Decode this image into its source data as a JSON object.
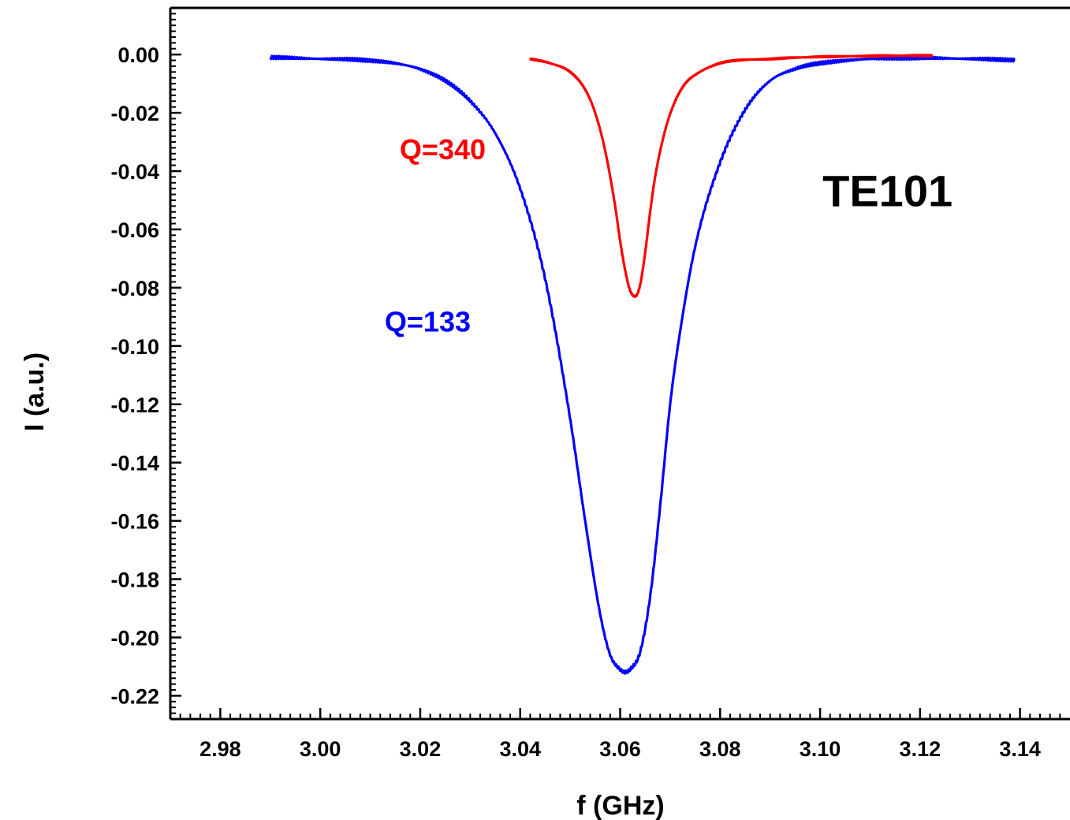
{
  "chart_data": {
    "type": "line",
    "title": "",
    "xlabel": "f (GHz)",
    "ylabel": "I (a.u.)",
    "xlim": [
      2.97,
      3.15
    ],
    "ylim": [
      -0.228,
      0.016
    ],
    "x_ticks": [
      2.98,
      3.0,
      3.02,
      3.04,
      3.06,
      3.08,
      3.1,
      3.12,
      3.14
    ],
    "x_tick_labels": [
      "2.98",
      "3.00",
      "3.02",
      "3.04",
      "3.06",
      "3.08",
      "3.10",
      "3.12",
      "3.14"
    ],
    "y_ticks": [
      0.0,
      -0.02,
      -0.04,
      -0.06,
      -0.08,
      -0.1,
      -0.12,
      -0.14,
      -0.16,
      -0.18,
      -0.2,
      -0.22
    ],
    "y_tick_labels": [
      "0.00",
      "-0.02",
      "-0.04",
      "-0.06",
      "-0.08",
      "-0.10",
      "-0.12",
      "-0.14",
      "-0.16",
      "-0.18",
      "-0.20",
      "-0.22"
    ],
    "grid": false,
    "legend": "none",
    "series": [
      {
        "color": "#0000ff",
        "x": [
          2.99,
          3.0,
          3.01,
          3.015,
          3.02,
          3.025,
          3.03,
          3.035,
          3.04,
          3.045,
          3.05,
          3.053,
          3.056,
          3.058,
          3.06,
          3.061,
          3.062,
          3.064,
          3.066,
          3.068,
          3.07,
          3.072,
          3.075,
          3.08,
          3.085,
          3.09,
          3.095,
          3.1,
          3.11,
          3.12,
          3.13,
          3.139
        ],
        "y": [
          -0.001,
          -0.0015,
          -0.002,
          -0.003,
          -0.005,
          -0.009,
          -0.016,
          -0.027,
          -0.046,
          -0.077,
          -0.125,
          -0.16,
          -0.192,
          -0.206,
          -0.211,
          -0.212,
          -0.211,
          -0.205,
          -0.186,
          -0.155,
          -0.12,
          -0.095,
          -0.066,
          -0.037,
          -0.019,
          -0.009,
          -0.005,
          -0.003,
          -0.0015,
          -0.0012,
          -0.0015,
          -0.0018
        ]
      },
      {
        "color": "#ff0000",
        "x": [
          3.042,
          3.046,
          3.05,
          3.053,
          3.055,
          3.057,
          3.059,
          3.06,
          3.061,
          3.062,
          3.063,
          3.064,
          3.065,
          3.066,
          3.067,
          3.069,
          3.071,
          3.073,
          3.075,
          3.08,
          3.09,
          3.1,
          3.11,
          3.1225
        ],
        "y": [
          -0.0015,
          -0.003,
          -0.006,
          -0.012,
          -0.02,
          -0.033,
          -0.052,
          -0.064,
          -0.074,
          -0.081,
          -0.083,
          -0.079,
          -0.068,
          -0.054,
          -0.042,
          -0.026,
          -0.016,
          -0.01,
          -0.007,
          -0.003,
          -0.0015,
          -0.0008,
          -0.0005,
          -0.0003
        ]
      }
    ],
    "annotations": [
      {
        "text": "Q=340",
        "color": "#ff0000",
        "x": 3.0245,
        "y": -0.036
      },
      {
        "text": "Q=133",
        "color": "#0000ff",
        "x": 3.0215,
        "y": -0.095
      },
      {
        "text": "TE101",
        "color": "#000000",
        "x": 3.1135,
        "y": -0.052
      }
    ]
  }
}
